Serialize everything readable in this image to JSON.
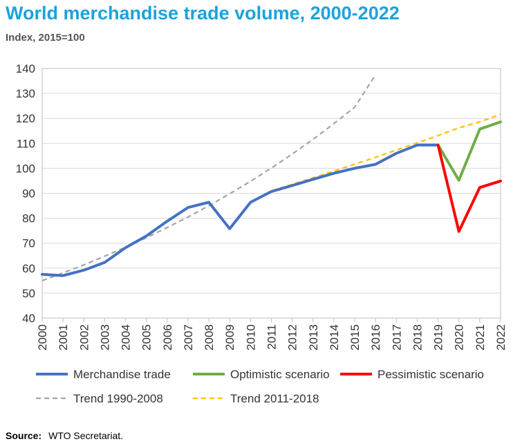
{
  "header": {
    "title": "World merchandise trade volume, 2000-2022",
    "subtitle": "Index, 2015=100"
  },
  "footer": {
    "source_label": "Source:",
    "source_value": "WTO Secretariat."
  },
  "chart_data": {
    "type": "line",
    "title": "World merchandise trade volume, 2000-2022",
    "subtitle": "Index, 2015=100",
    "ylim": [
      40,
      140
    ],
    "xlim": [
      2000,
      2022
    ],
    "yticks": [
      40,
      50,
      60,
      70,
      80,
      90,
      100,
      110,
      120,
      130,
      140
    ],
    "xticks": [
      2000,
      2001,
      2002,
      2003,
      2004,
      2005,
      2006,
      2007,
      2008,
      2009,
      2010,
      2011,
      2012,
      2013,
      2014,
      2015,
      2016,
      2017,
      2018,
      2019,
      2020,
      2021,
      2022
    ],
    "grid": true,
    "legend_position": "bottom",
    "series": [
      {
        "name": "Merchandise trade",
        "color": "#4472c4",
        "style": "solid",
        "x": [
          2000,
          2001,
          2002,
          2003,
          2004,
          2005,
          2006,
          2007,
          2008,
          2009,
          2010,
          2011,
          2012,
          2013,
          2014,
          2015,
          2016,
          2017,
          2018,
          2019
        ],
        "y": [
          57.5,
          57,
          59.2,
          62.3,
          68.2,
          72.9,
          78.8,
          84.3,
          86.4,
          75.8,
          86.4,
          90.7,
          93.1,
          95.6,
          98,
          100,
          101.6,
          106,
          109.3,
          109.3
        ]
      },
      {
        "name": "Optimistic scenario",
        "color": "#70ad47",
        "style": "solid",
        "x": [
          2019,
          2020,
          2021,
          2022
        ],
        "y": [
          109.3,
          95.2,
          115.7,
          118.6
        ]
      },
      {
        "name": "Pessimistic scenario",
        "color": "#ff0000",
        "style": "solid",
        "x": [
          2019,
          2020,
          2021,
          2022
        ],
        "y": [
          109.3,
          74.7,
          92.3,
          94.9
        ]
      },
      {
        "name": "Trend 1990-2008",
        "color": "#a5a5a5",
        "style": "dashed",
        "x": [
          2000,
          2001,
          2002,
          2003,
          2004,
          2005,
          2006,
          2007,
          2008,
          2009,
          2010,
          2011,
          2012,
          2013,
          2014,
          2015,
          2016
        ],
        "y": [
          55,
          58.1,
          61.3,
          64.8,
          68.4,
          72.2,
          76.3,
          80.5,
          85,
          89.8,
          94.8,
          100.1,
          105.7,
          111.6,
          117.9,
          124.5,
          137.5
        ]
      },
      {
        "name": "Trend 2011-2018",
        "color": "#ffc000",
        "style": "dashed",
        "x": [
          2011,
          2012,
          2013,
          2014,
          2015,
          2016,
          2017,
          2018,
          2019,
          2020,
          2021,
          2022
        ],
        "y": [
          91,
          93.6,
          96.2,
          98.9,
          101.6,
          104.4,
          107.3,
          110.2,
          113.1,
          116.2,
          118.6,
          121.6
        ]
      }
    ]
  }
}
